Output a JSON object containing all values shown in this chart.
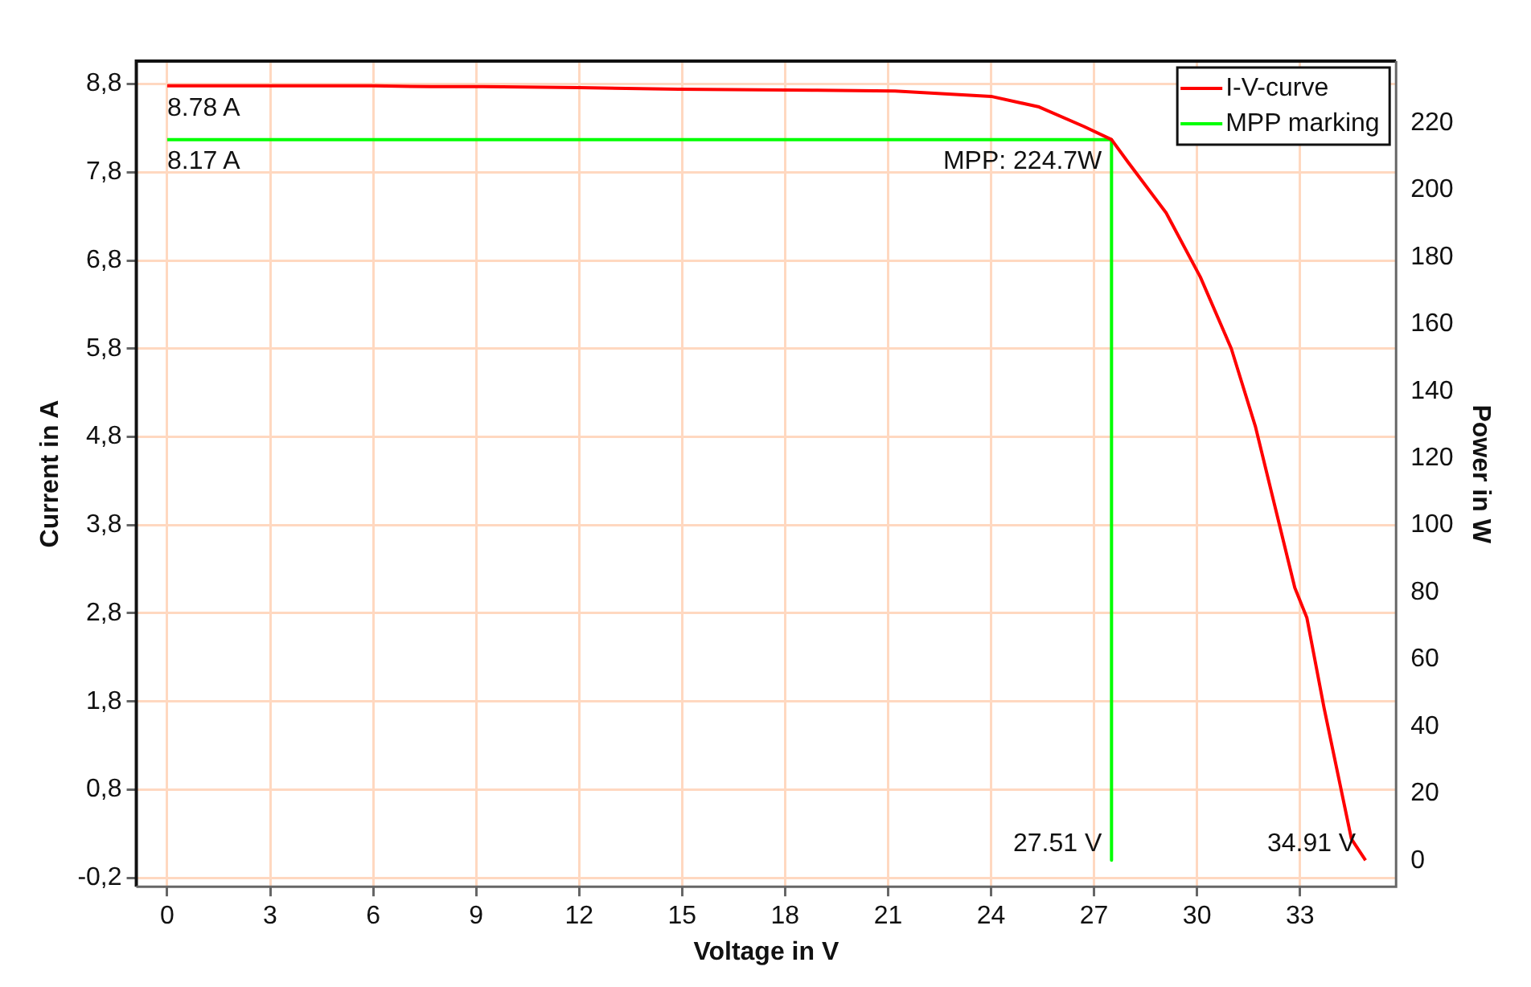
{
  "chart_data": {
    "type": "line",
    "xlabel": "Voltage in V",
    "ylabel": "Current in A",
    "y2label": "Power in W",
    "xlim": [
      -0.9,
      35.8
    ],
    "xticks": [
      0,
      3,
      6,
      9,
      12,
      15,
      18,
      21,
      24,
      27,
      30,
      33
    ],
    "ylim": [
      -0.3,
      9.06
    ],
    "yticks": [
      {
        "value": -0.2,
        "label": "-0,2"
      },
      {
        "value": 0.8,
        "label": "0,8"
      },
      {
        "value": 1.8,
        "label": "1,8"
      },
      {
        "value": 2.8,
        "label": "2,8"
      },
      {
        "value": 3.8,
        "label": "3,8"
      },
      {
        "value": 4.8,
        "label": "4,8"
      },
      {
        "value": 5.8,
        "label": "5,8"
      },
      {
        "value": 6.8,
        "label": "6,8"
      },
      {
        "value": 7.8,
        "label": "7,8"
      },
      {
        "value": 8.8,
        "label": "8,8"
      }
    ],
    "y2lim": [
      -7.7,
      238.4
    ],
    "y2ticks": [
      0,
      20,
      40,
      60,
      80,
      100,
      120,
      140,
      160,
      180,
      200,
      220
    ],
    "series": [
      {
        "name": "I-V-curve",
        "color": "#ff0000",
        "x": [
          0,
          3,
          6,
          7.7,
          9.2,
          12,
          14.9,
          18.8,
          21.2,
          24,
          25.4,
          26.7,
          27.51,
          28,
          29.1,
          30.1,
          31,
          31.7,
          32.85,
          33.2,
          33.7,
          34.5,
          34.91
        ],
        "values": [
          8.78,
          8.78,
          8.78,
          8.77,
          8.77,
          8.76,
          8.74,
          8.73,
          8.72,
          8.66,
          8.54,
          8.32,
          8.17,
          7.91,
          7.34,
          6.61,
          5.8,
          4.92,
          3.09,
          2.75,
          1.73,
          0.24,
          0
        ]
      },
      {
        "name": "MPP marking",
        "color": "#00ff00",
        "x": [
          0,
          27.51,
          27.51
        ],
        "values": [
          8.17,
          8.17,
          0
        ]
      }
    ],
    "annotations": [
      {
        "text": "8.78 A",
        "x": 0,
        "y": 8.78
      },
      {
        "text": "8.17 A",
        "x": 0,
        "y": 8.17
      },
      {
        "text": "MPP: 224.7W",
        "x": 27.51,
        "y": 8.17
      },
      {
        "text": "27.51 V",
        "x": 27.51,
        "y": 0
      },
      {
        "text": "34.91 V",
        "x": 34.91,
        "y": 0
      }
    ],
    "grid": true,
    "legend": "top right",
    "marker": "none",
    "line_style": "solid"
  }
}
